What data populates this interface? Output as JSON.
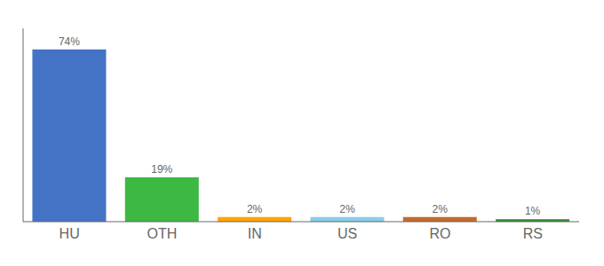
{
  "chart_data": {
    "type": "bar",
    "categories": [
      "HU",
      "OTH",
      "IN",
      "US",
      "RO",
      "RS"
    ],
    "values": [
      74,
      19,
      2,
      2,
      2,
      1
    ],
    "value_labels": [
      "74%",
      "19%",
      "2%",
      "2%",
      "2%",
      "1%"
    ],
    "colors": [
      "#4472C4",
      "#3CB843",
      "#FFA500",
      "#87CEEB",
      "#C46A2D",
      "#2E8B2E"
    ],
    "ylim": [
      0,
      83
    ],
    "data_labels": true,
    "tick_labels": "x",
    "grid": false
  }
}
